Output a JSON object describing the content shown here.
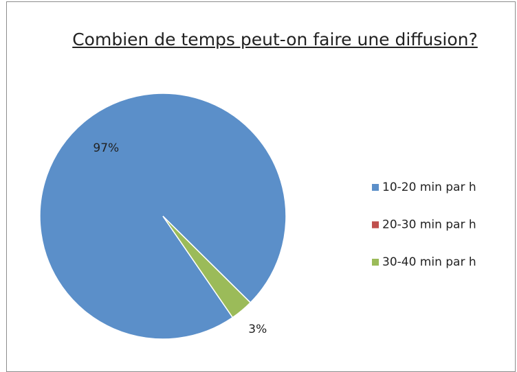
{
  "chart_data": {
    "type": "pie",
    "title": "Combien de temps peut-on faire une diffusion?",
    "categories": [
      "10-20 min par h",
      "20-30 min par h",
      "30-40 min par h"
    ],
    "values": [
      97,
      0,
      3
    ],
    "value_labels": [
      "97%",
      null,
      "3%"
    ],
    "colors": [
      "#5b8fc9",
      "#c0504d",
      "#9bbb59"
    ],
    "legend": "right"
  }
}
